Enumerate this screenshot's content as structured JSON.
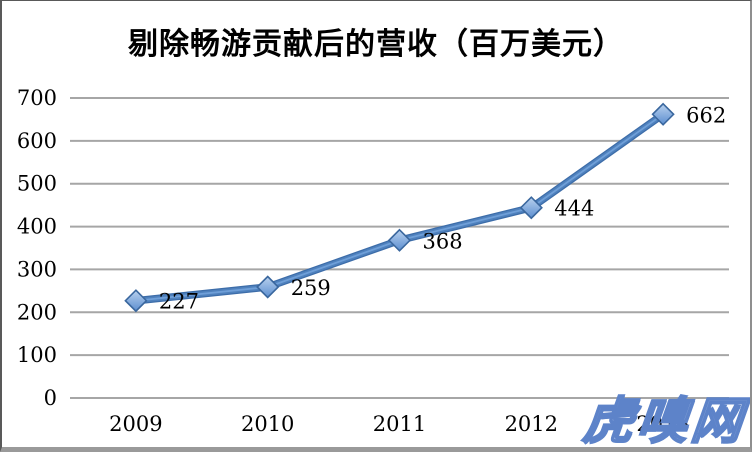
{
  "chart_data": {
    "type": "line",
    "title": "剔除畅游贡献后的营收（百万美元）",
    "categories": [
      "2009",
      "2010",
      "2011",
      "2012",
      "2013"
    ],
    "series": [
      {
        "name": "剔除畅游贡献后的营收",
        "values": [
          227,
          259,
          368,
          444,
          662
        ]
      }
    ],
    "data_labels_shown": true,
    "xlabel": "",
    "ylabel": "",
    "ylim": [
      0,
      700
    ],
    "yticks": [
      0,
      100,
      200,
      300,
      400,
      500,
      600,
      700
    ],
    "grid": true,
    "legend": "none",
    "colors": {
      "line": "#4f81bd",
      "line_dark_edge": "#3d6da9",
      "line_highlight": "#6f9fd8",
      "marker_fill_top": "#b9d1ee",
      "marker_fill_bottom": "#5c8ed0",
      "marker_stroke": "#3a679e",
      "gridline": "#a6a6a6",
      "text": "#000000"
    }
  },
  "watermark": {
    "text": "虎嗅网",
    "fill_color": "#b3c6ea",
    "outline_color": "#5d83c9"
  }
}
